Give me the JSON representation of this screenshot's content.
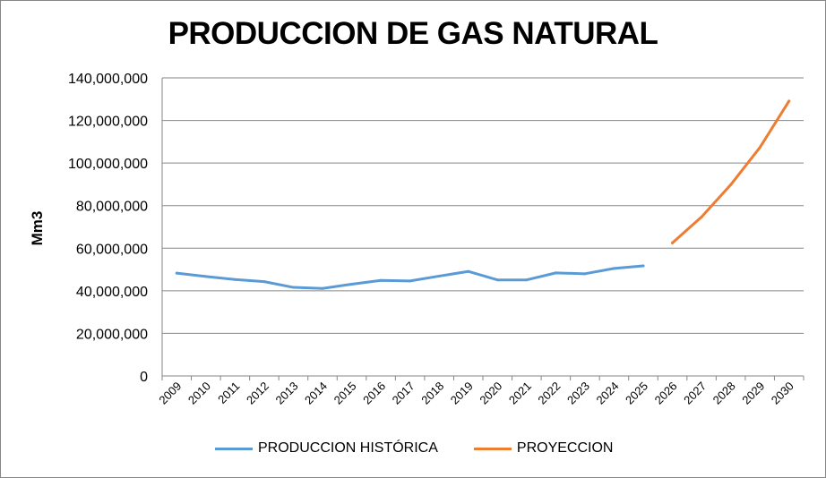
{
  "chart_data": {
    "type": "line",
    "title": "PRODUCCION DE GAS NATURAL",
    "xlabel": "",
    "ylabel": "Mm3",
    "ylim": [
      0,
      140000000
    ],
    "yticks": [
      0,
      20000000,
      40000000,
      60000000,
      80000000,
      100000000,
      120000000,
      140000000
    ],
    "ytick_labels": [
      "0",
      "20,000,000",
      "40,000,000",
      "60,000,000",
      "80,000,000",
      "100,000,000",
      "120,000,000",
      "140,000,000"
    ],
    "grid": true,
    "legend_position": "bottom",
    "categories": [
      "2009",
      "2010",
      "2011",
      "2012",
      "2013",
      "2014",
      "2015",
      "2016",
      "2017",
      "2018",
      "2019",
      "2020",
      "2021",
      "2022",
      "2023",
      "2024",
      "2025",
      "2026",
      "2027",
      "2028",
      "2029",
      "2030"
    ],
    "series": [
      {
        "name": "PRODUCCION HISTÓRICA",
        "color": "#5B9BD5",
        "values": [
          48300000,
          46700000,
          45300000,
          44300000,
          41600000,
          41100000,
          43100000,
          44900000,
          44600000,
          46900000,
          49100000,
          45100000,
          45100000,
          48400000,
          48000000,
          50500000,
          51700000,
          null,
          null,
          null,
          null,
          null
        ]
      },
      {
        "name": "PROYECCION",
        "color": "#ED7D31",
        "values": [
          null,
          null,
          null,
          null,
          null,
          null,
          null,
          null,
          null,
          null,
          null,
          null,
          null,
          null,
          null,
          null,
          null,
          62500000,
          74700000,
          89800000,
          107300000,
          129100000
        ]
      }
    ]
  }
}
